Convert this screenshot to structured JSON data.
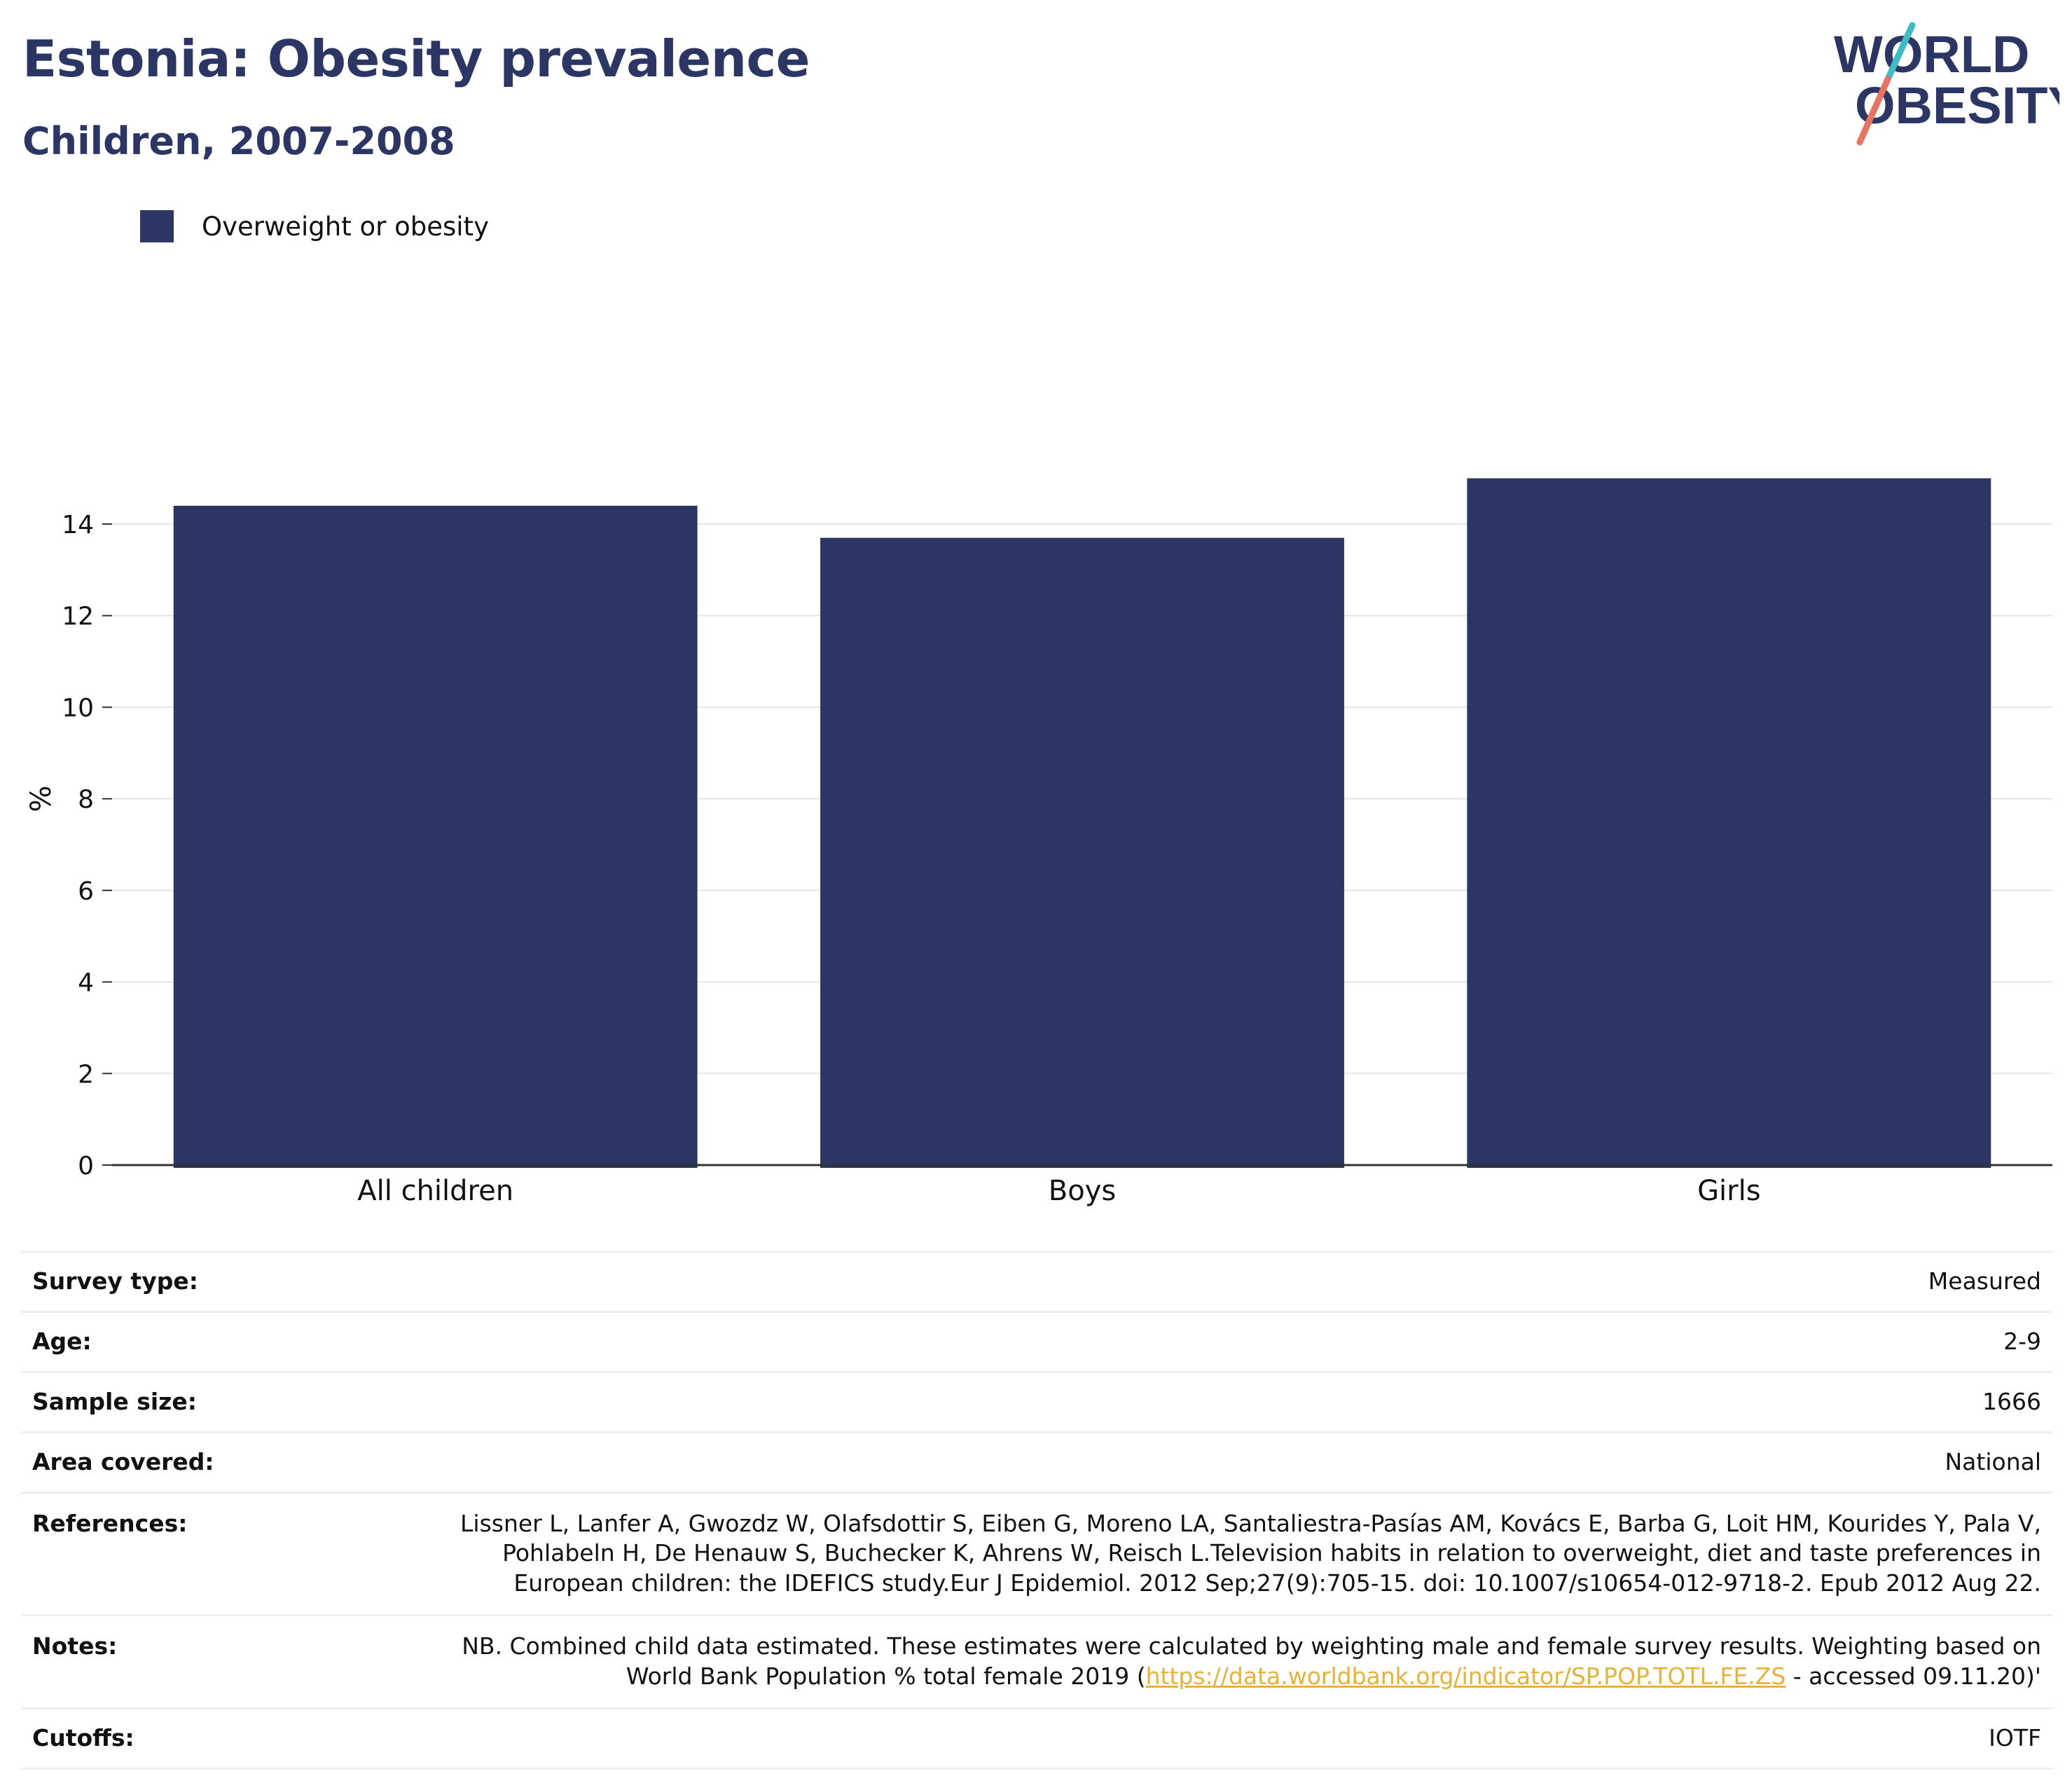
{
  "header": {
    "title": "Estonia: Obesity prevalence",
    "subtitle": "Children, 2007-2008"
  },
  "logo": {
    "line1": "WORLD",
    "line2": "OBESITY",
    "colors": {
      "text": "#2b3664",
      "slash_top": "#3dbcc6",
      "slash_bottom": "#e8735e"
    }
  },
  "chart_data": {
    "type": "bar",
    "categories": [
      "All children",
      "Boys",
      "Girls"
    ],
    "series": [
      {
        "name": "Overweight or obesity",
        "values": [
          14.4,
          13.7,
          15.0
        ],
        "color": "#2b3664"
      }
    ],
    "xlabel": "",
    "ylabel": "%",
    "ylim": [
      0,
      15.5
    ],
    "yticks": [
      0,
      2,
      4,
      6,
      8,
      10,
      12,
      14
    ],
    "grid": true,
    "legend": "top-left"
  },
  "info": {
    "rows": [
      {
        "label": "Survey type:",
        "value": "Measured"
      },
      {
        "label": "Age:",
        "value": "2-9"
      },
      {
        "label": "Sample size:",
        "value": "1666"
      },
      {
        "label": "Area covered:",
        "value": "National"
      },
      {
        "label": "References:",
        "value": "Lissner L, Lanfer A, Gwozdz W, Olafsdottir S, Eiben G, Moreno LA, Santaliestra-Pasías AM, Kovács E, Barba G, Loit HM, Kourides Y, Pala V, Pohlabeln H, De Henauw S, Buchecker K, Ahrens W, Reisch L.Television habits in relation to overweight, diet and taste preferences in European children: the IDEFICS study.Eur J Epidemiol. 2012 Sep;27(9):705-15. doi: 10.1007/s10654-012-9718-2. Epub 2012 Aug 22."
      },
      {
        "label": "Notes:",
        "value_before": "NB. Combined child data estimated. These estimates were calculated by weighting male and female survey results. Weighting based on World Bank Population % total female 2019 (",
        "link_text": "https://data.worldbank.org/indicator/SP.POP.TOTL.FE.ZS",
        "value_after": " - accessed 09.11.20)'"
      },
      {
        "label": "Cutoffs:",
        "value": "IOTF"
      }
    ]
  }
}
